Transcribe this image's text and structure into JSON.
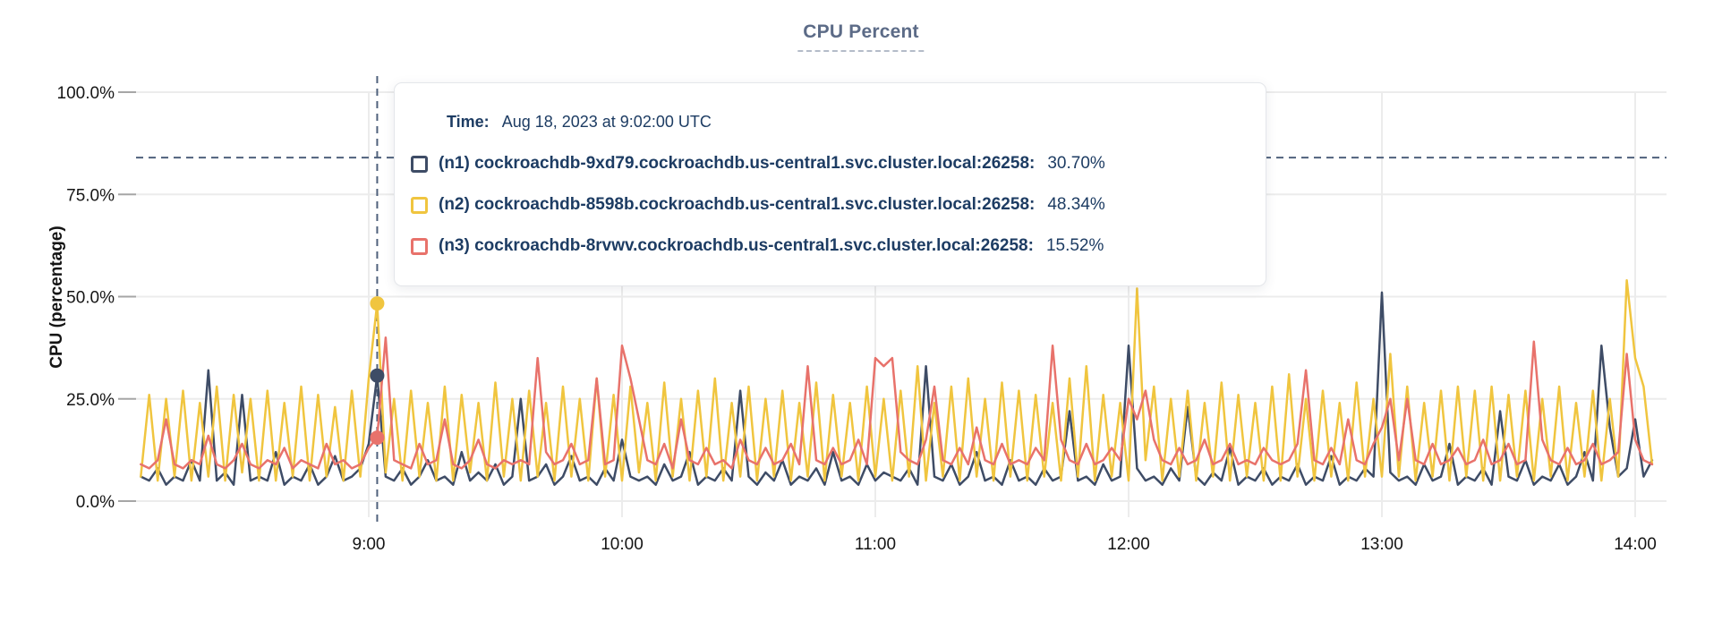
{
  "header": {
    "title": "CPU Percent"
  },
  "tooltip": {
    "time_label": "Time:",
    "time_value": "Aug 18, 2023 at 9:02:00 UTC",
    "rows": [
      {
        "label": "(n1) cockroachdb-9xd79.cockroachdb.us-central1.svc.cluster.local:26258:",
        "value": "30.70%",
        "color": "#3e4c66"
      },
      {
        "label": "(n2) cockroachdb-8598b.cockroachdb.us-central1.svc.cluster.local:26258:",
        "value": "48.34%",
        "color": "#f0c53f"
      },
      {
        "label": "(n3) cockroachdb-8rvwv.cockroachdb.us-central1.svc.cluster.local:26258:",
        "value": "15.52%",
        "color": "#e8726b"
      }
    ]
  },
  "chart_data": {
    "type": "line",
    "title": "CPU Percent",
    "xlabel": "",
    "ylabel": "CPU (percentage)",
    "ylim": [
      0,
      100
    ],
    "grid": true,
    "y_ticks": [
      {
        "v": 0,
        "label": "0.0%"
      },
      {
        "v": 25,
        "label": "25.0%"
      },
      {
        "v": 50,
        "label": "50.0%"
      },
      {
        "v": 75,
        "label": "75.0%"
      },
      {
        "v": 100,
        "label": "100.0%"
      }
    ],
    "x_ticks": [
      {
        "m": 540,
        "label": "9:00"
      },
      {
        "m": 600,
        "label": "10:00"
      },
      {
        "m": 660,
        "label": "11:00"
      },
      {
        "m": 720,
        "label": "12:00"
      },
      {
        "m": 780,
        "label": "13:00"
      },
      {
        "m": 840,
        "label": "14:00"
      }
    ],
    "x_start_minutes": 486,
    "x_step_minutes": 2,
    "hover": {
      "time_minutes": 542,
      "time_label": "9:02",
      "crosshair_y_percent": 84,
      "dots": [
        {
          "series_index": 0,
          "percent": 30.7
        },
        {
          "series_index": 1,
          "percent": 48.34
        },
        {
          "series_index": 2,
          "percent": 15.52
        }
      ]
    },
    "series": [
      {
        "name": "(n1) cockroachdb-9xd79.cockroachdb.us-central1.svc.cluster.local:26258",
        "color": "#3e4c66",
        "values": [
          6,
          5,
          8,
          4,
          6,
          5,
          10,
          5,
          32,
          5,
          7,
          4,
          26,
          5,
          6,
          5,
          12,
          4,
          6,
          5,
          9,
          4,
          6,
          11,
          5,
          6,
          8,
          14,
          30.7,
          6,
          5,
          8,
          4,
          6,
          10,
          5,
          6,
          4,
          12,
          5,
          7,
          5,
          9,
          4,
          6,
          25,
          5,
          6,
          9,
          4,
          6,
          11,
          5,
          6,
          4,
          8,
          5,
          15,
          6,
          5,
          6,
          4,
          9,
          5,
          6,
          12,
          4,
          6,
          5,
          8,
          5,
          27,
          6,
          4,
          7,
          5,
          10,
          4,
          6,
          5,
          8,
          4,
          12,
          5,
          6,
          4,
          9,
          5,
          7,
          6,
          5,
          8,
          4,
          33,
          6,
          5,
          9,
          4,
          6,
          12,
          5,
          6,
          4,
          10,
          5,
          6,
          4,
          8,
          5,
          6,
          22,
          5,
          6,
          4,
          9,
          5,
          6,
          38,
          8,
          5,
          6,
          4,
          8,
          5,
          23,
          6,
          4,
          7,
          5,
          13,
          4,
          6,
          5,
          8,
          4,
          6,
          5,
          9,
          4,
          6,
          5,
          11,
          4,
          6,
          5,
          8,
          6,
          51,
          7,
          5,
          6,
          4,
          9,
          5,
          6,
          14,
          4,
          6,
          5,
          8,
          4,
          22,
          6,
          5,
          10,
          4,
          6,
          5,
          9,
          4,
          6,
          12,
          5,
          38,
          18,
          6,
          8,
          20,
          6,
          10
        ]
      },
      {
        "name": "(n2) cockroachdb-8598b.cockroachdb.us-central1.svc.cluster.local:26258",
        "color": "#f0c53f",
        "values": [
          6,
          26,
          5,
          25,
          6,
          27,
          5,
          24,
          6,
          28,
          5,
          26,
          7,
          25,
          5,
          27,
          5,
          24,
          6,
          28,
          5,
          26,
          6,
          23,
          5,
          27,
          6,
          30,
          48.34,
          7,
          25,
          5,
          27,
          6,
          24,
          5,
          28,
          5,
          26,
          7,
          24,
          5,
          29,
          6,
          25,
          5,
          27,
          6,
          24,
          5,
          28,
          6,
          25,
          5,
          30,
          6,
          26,
          5,
          28,
          7,
          24,
          5,
          29,
          6,
          25,
          5,
          27,
          6,
          30,
          5,
          24,
          6,
          28,
          5,
          25,
          6,
          27,
          5,
          24,
          6,
          29,
          5,
          26,
          6,
          24,
          5,
          28,
          6,
          25,
          5,
          27,
          6,
          33,
          5,
          24,
          6,
          28,
          5,
          30,
          6,
          25,
          5,
          29,
          6,
          27,
          5,
          26,
          6,
          24,
          5,
          30,
          6,
          33,
          5,
          26,
          6,
          24,
          5,
          52,
          10,
          28,
          5,
          25,
          6,
          27,
          5,
          24,
          6,
          29,
          5,
          26,
          6,
          24,
          5,
          28,
          5,
          31,
          6,
          25,
          5,
          27,
          6,
          24,
          5,
          29,
          6,
          25,
          6,
          36,
          6,
          28,
          5,
          24,
          6,
          27,
          5,
          28,
          6,
          27,
          5,
          28,
          5,
          26,
          6,
          27,
          5,
          25,
          6,
          28,
          5,
          24,
          6,
          27,
          5,
          25,
          6,
          54,
          35,
          28,
          9
        ]
      },
      {
        "name": "(n3) cockroachdb-8rvwv.cockroachdb.us-central1.svc.cluster.local:26258",
        "color": "#e8726b",
        "values": [
          9,
          8,
          10,
          20,
          9,
          8,
          10,
          9,
          16,
          9,
          8,
          10,
          14,
          9,
          8,
          10,
          9,
          13,
          8,
          10,
          9,
          8,
          14,
          9,
          10,
          8,
          9,
          13,
          15.52,
          40,
          10,
          9,
          8,
          14,
          9,
          10,
          20,
          9,
          8,
          10,
          15,
          9,
          8,
          10,
          9,
          10,
          9,
          35,
          12,
          9,
          10,
          14,
          9,
          10,
          30,
          9,
          10,
          38,
          30,
          20,
          10,
          9,
          14,
          8,
          20,
          10,
          9,
          13,
          9,
          10,
          8,
          15,
          10,
          9,
          13,
          9,
          10,
          14,
          9,
          33,
          10,
          9,
          13,
          9,
          10,
          15,
          9,
          35,
          33,
          35,
          12,
          10,
          9,
          15,
          28,
          10,
          9,
          13,
          9,
          18,
          10,
          9,
          14,
          9,
          10,
          9,
          13,
          10,
          38,
          15,
          10,
          9,
          14,
          9,
          10,
          13,
          10,
          25,
          20,
          27,
          15,
          10,
          9,
          13,
          9,
          10,
          15,
          9,
          10,
          14,
          9,
          10,
          9,
          13,
          10,
          9,
          10,
          14,
          32,
          10,
          9,
          13,
          9,
          20,
          10,
          9,
          14,
          18,
          25,
          10,
          25,
          10,
          9,
          14,
          9,
          10,
          13,
          9,
          10,
          15,
          9,
          10,
          14,
          9,
          10,
          39,
          15,
          10,
          9,
          13,
          9,
          10,
          14,
          9,
          10,
          12,
          36,
          15,
          10,
          9
        ]
      }
    ]
  }
}
